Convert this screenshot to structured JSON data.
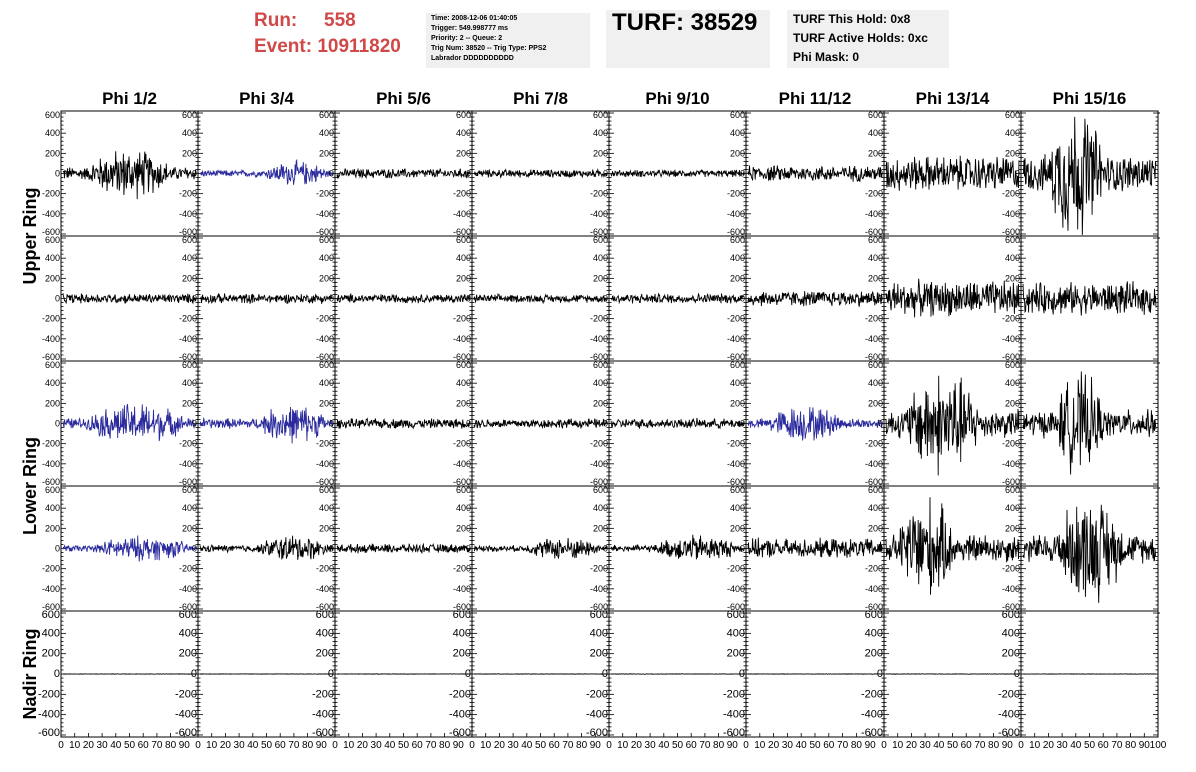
{
  "header": {
    "run_label": "Run:",
    "run_value": "558",
    "event_label": "Event:",
    "event_value": "10911820",
    "info_lines": [
      "Time: 2008-12-06 01:40:05",
      "Trigger: 549.998777 ms",
      "Priority: 2 -- Queue: 2",
      "Trig Num: 38520 -- Trig Type: PPS2",
      "Labrador DDDDDDDDDD"
    ],
    "turf": "TURF: 38529",
    "hold_lines": [
      "TURF This Hold: 0x8",
      "TURF Active Holds: 0xc",
      "Phi Mask: 0"
    ]
  },
  "chart_data": {
    "type": "line",
    "columns": [
      "Phi 1/2",
      "Phi 3/4",
      "Phi 5/6",
      "Phi 7/8",
      "Phi 9/10",
      "Phi 11/12",
      "Phi 13/14",
      "Phi 15/16"
    ],
    "ring_labels": [
      "Upper Ring",
      "Lower Ring",
      "Nadir Ring"
    ],
    "row_ring": [
      0,
      0,
      1,
      1,
      2
    ],
    "y_ticks": [
      "600",
      "400",
      "200",
      "0",
      "-200",
      "-400",
      "-600"
    ],
    "ylim": [
      -620,
      620
    ],
    "x_ticks": [
      "0",
      "10",
      "20",
      "30",
      "40",
      "50",
      "60",
      "70",
      "80",
      "90",
      "100"
    ],
    "xlim": [
      0,
      100
    ],
    "colors": {
      "blue": "#2b2b9e",
      "black": "#000000"
    },
    "rows": [
      [
        {
          "amp": 110,
          "blue": false,
          "burst": [
            20,
            80
          ]
        },
        {
          "amp": 55,
          "blue": true,
          "burst": [
            50,
            95
          ]
        },
        {
          "amp": 55,
          "blue": false
        },
        {
          "amp": 45,
          "blue": false
        },
        {
          "amp": 40,
          "blue": false
        },
        {
          "amp": 90,
          "blue": false
        },
        {
          "amp": 200,
          "blue": false
        },
        {
          "amp": 300,
          "blue": false,
          "burst": [
            20,
            60
          ]
        }
      ],
      [
        {
          "amp": 55,
          "blue": false
        },
        {
          "amp": 55,
          "blue": false
        },
        {
          "amp": 50,
          "blue": false
        },
        {
          "amp": 45,
          "blue": false
        },
        {
          "amp": 55,
          "blue": false
        },
        {
          "amp": 90,
          "blue": false
        },
        {
          "amp": 200,
          "blue": false
        },
        {
          "amp": 180,
          "blue": false
        }
      ],
      [
        {
          "amp": 90,
          "blue": true,
          "burst": [
            20,
            90
          ]
        },
        {
          "amp": 85,
          "blue": true,
          "burst": [
            45,
            95
          ]
        },
        {
          "amp": 55,
          "blue": false
        },
        {
          "amp": 55,
          "blue": false
        },
        {
          "amp": 55,
          "blue": false
        },
        {
          "amp": 80,
          "blue": true,
          "burst": [
            15,
            70
          ]
        },
        {
          "amp": 230,
          "blue": false,
          "burst": [
            15,
            70
          ]
        },
        {
          "amp": 220,
          "blue": false,
          "burst": [
            25,
            60
          ]
        }
      ],
      [
        {
          "amp": 55,
          "blue": true,
          "burst": [
            25,
            95
          ]
        },
        {
          "amp": 60,
          "blue": false,
          "burst": [
            45,
            95
          ]
        },
        {
          "amp": 50,
          "blue": false
        },
        {
          "amp": 50,
          "blue": false,
          "burst": [
            40,
            95
          ]
        },
        {
          "amp": 60,
          "blue": false,
          "burst": [
            35,
            95
          ]
        },
        {
          "amp": 110,
          "blue": false
        },
        {
          "amp": 230,
          "blue": false,
          "burst": [
            10,
            50
          ]
        },
        {
          "amp": 230,
          "blue": false,
          "burst": [
            25,
            75
          ]
        }
      ],
      [
        {
          "amp": 3,
          "blue": false
        },
        {
          "amp": 3,
          "blue": false
        },
        {
          "amp": 3,
          "blue": false
        },
        {
          "amp": 3,
          "blue": false
        },
        {
          "amp": 3,
          "blue": false
        },
        {
          "amp": 3,
          "blue": false
        },
        {
          "amp": 3,
          "blue": false
        },
        {
          "amp": 3,
          "blue": false
        }
      ]
    ]
  }
}
